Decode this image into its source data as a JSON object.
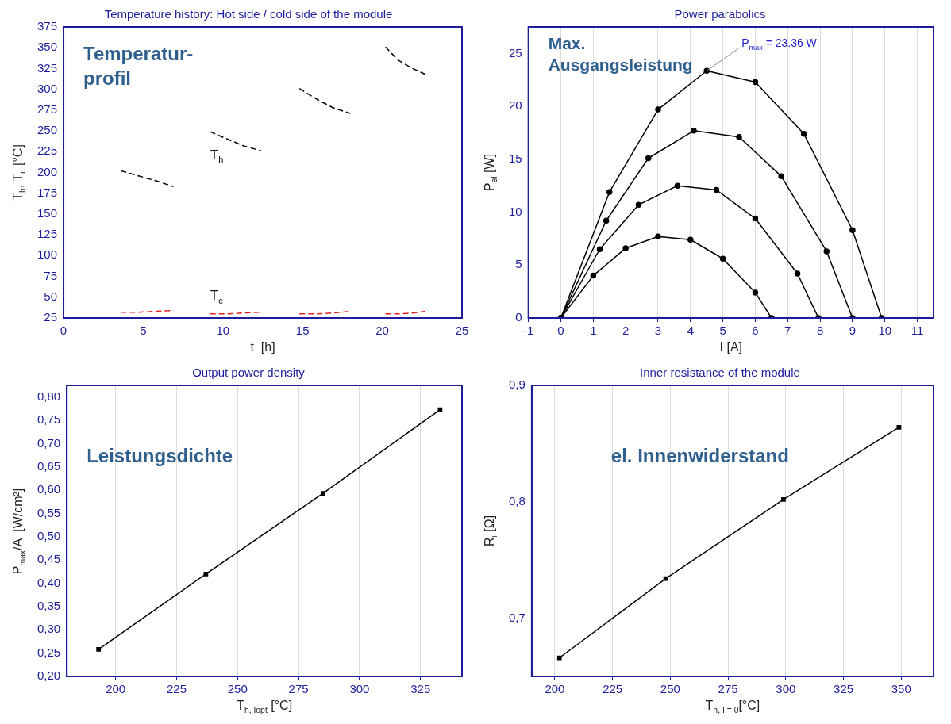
{
  "chart_data": [
    {
      "type": "line",
      "title": "Temperature history: Hot side / cold side of the module",
      "xlabel": "t  [h]",
      "ylabel": "T$_{h}$, T$_{c}$ [°C]",
      "xlim": [
        0,
        25
      ],
      "xticks": [
        0,
        5,
        10,
        15,
        20,
        25
      ],
      "ylim": [
        25,
        375
      ],
      "yticks": [
        25,
        50,
        75,
        100,
        125,
        150,
        175,
        200,
        225,
        250,
        275,
        300,
        325,
        350,
        375
      ],
      "marker": "none",
      "line_style": "dashed",
      "grid": false,
      "legend": false,
      "annotations": [
        "Temperatur-\nprofil"
      ],
      "series": [
        {
          "name": "T$_{h}$",
          "color": "#000000",
          "x": [
            3.6,
            4.7,
            5.8,
            6.9,
            8,
            9.2,
            10.3,
            11.3,
            12.4,
            13.6,
            14.8,
            15.9,
            16.9,
            18,
            19.1,
            20.2,
            21,
            21.9,
            22.7
          ],
          "values": [
            202,
            196,
            190,
            183,
            null,
            249,
            240,
            232,
            226,
            null,
            301,
            288,
            278,
            271,
            null,
            351,
            335,
            325,
            318
          ]
        },
        {
          "name": "T$_{c}$",
          "color": "#e02020",
          "x": [
            3.6,
            4.7,
            5.8,
            6.9,
            8,
            9.2,
            10.3,
            11.3,
            12.4,
            13.6,
            14.8,
            15.9,
            16.9,
            18,
            19.1,
            20.2,
            21,
            21.9,
            22.7
          ],
          "values": [
            32,
            32,
            33,
            34,
            null,
            30,
            30,
            31,
            32,
            null,
            30,
            30,
            31,
            33,
            null,
            30,
            30,
            31,
            33
          ]
        }
      ]
    },
    {
      "type": "line",
      "title": "Power parabolics",
      "xlabel": "I [A]",
      "ylabel": "P$_{el}$ [W]",
      "xlim": [
        -1,
        11.5
      ],
      "xticks": [
        -1,
        0,
        1,
        2,
        3,
        4,
        5,
        6,
        7,
        8,
        9,
        10,
        11
      ],
      "ylim": [
        0,
        27.5
      ],
      "yticks": [
        0,
        5,
        10,
        15,
        20,
        25
      ],
      "marker": "circle",
      "line_style": "solid",
      "grid": "x",
      "legend": false,
      "annotations": [
        "Max.\nAusgangsleistung",
        {
          "text": "P$_{max}$ = 23.36 W",
          "x": 4.5,
          "y": 23.36
        }
      ],
      "series": [
        {
          "color": "#000000",
          "x": [
            0,
            1,
            2,
            3,
            4,
            5,
            6,
            6.5
          ],
          "values": [
            0,
            4.0,
            6.6,
            7.7,
            7.4,
            5.6,
            2.4,
            0
          ]
        },
        {
          "color": "#000000",
          "x": [
            0,
            1.2,
            2.4,
            3.6,
            4.8,
            6,
            7.3,
            7.95
          ],
          "values": [
            0,
            6.5,
            10.7,
            12.5,
            12.1,
            9.4,
            4.2,
            0
          ]
        },
        {
          "color": "#000000",
          "x": [
            0,
            1.4,
            2.7,
            4.1,
            5.5,
            6.8,
            8.2,
            9
          ],
          "values": [
            0,
            9.2,
            15.1,
            17.7,
            17.1,
            13.4,
            6.3,
            0
          ]
        },
        {
          "color": "#000000",
          "x": [
            0,
            1.5,
            3,
            4.5,
            6,
            7.5,
            9,
            9.9
          ],
          "values": [
            0,
            11.9,
            19.7,
            23.36,
            22.3,
            17.4,
            8.3,
            0
          ]
        }
      ]
    },
    {
      "type": "line",
      "title": "Output power density",
      "xlabel": "T$_{h, Iopt}$ [°C]",
      "ylabel": "P$_{max}$/A  [W/cm²]",
      "xlim": [
        180,
        342
      ],
      "xticks": [
        200,
        225,
        250,
        275,
        300,
        325
      ],
      "ylim": [
        0.2,
        0.825
      ],
      "yticks": [
        {
          "value": 0.2,
          "label": "0,20"
        },
        {
          "value": 0.25,
          "label": "0,25"
        },
        {
          "value": 0.3,
          "label": "0,30"
        },
        {
          "value": 0.35,
          "label": "0,35"
        },
        {
          "value": 0.4,
          "label": "0,40"
        },
        {
          "value": 0.45,
          "label": "0,45"
        },
        {
          "value": 0.5,
          "label": "0,50"
        },
        {
          "value": 0.55,
          "label": "0,55"
        },
        {
          "value": 0.6,
          "label": "0,60"
        },
        {
          "value": 0.65,
          "label": "0,65"
        },
        {
          "value": 0.7,
          "label": "0,70"
        },
        {
          "value": 0.75,
          "label": "0,75"
        },
        {
          "value": 0.8,
          "label": "0,80"
        }
      ],
      "marker": "square",
      "line_style": "solid",
      "grid": "x",
      "legend": false,
      "annotations": [
        "Leistungsdichte"
      ],
      "series": [
        {
          "color": "#000000",
          "x": [
            193,
            237,
            285,
            333
          ],
          "values": [
            0.258,
            0.42,
            0.593,
            0.773
          ]
        }
      ]
    },
    {
      "type": "line",
      "title": "Inner resistance of the module",
      "xlabel": "T$_{h, I = 0}$[°C]",
      "ylabel": "R$_{i}$ [Ω]",
      "xlim": [
        190,
        364
      ],
      "xticks": [
        200,
        225,
        250,
        275,
        300,
        325,
        350
      ],
      "ylim": [
        0.65,
        0.9
      ],
      "yticks": [
        {
          "value": 0.7,
          "label": "0,7"
        },
        {
          "value": 0.8,
          "label": "0,8"
        },
        {
          "value": 0.9,
          "label": "0,9"
        }
      ],
      "marker": "square",
      "line_style": "solid",
      "grid": "x",
      "legend": false,
      "annotations": [
        "el. Innenwiderstand"
      ],
      "series": [
        {
          "color": "#000000",
          "x": [
            202,
            248,
            299,
            349
          ],
          "values": [
            0.666,
            0.734,
            0.802,
            0.864
          ]
        }
      ]
    }
  ]
}
